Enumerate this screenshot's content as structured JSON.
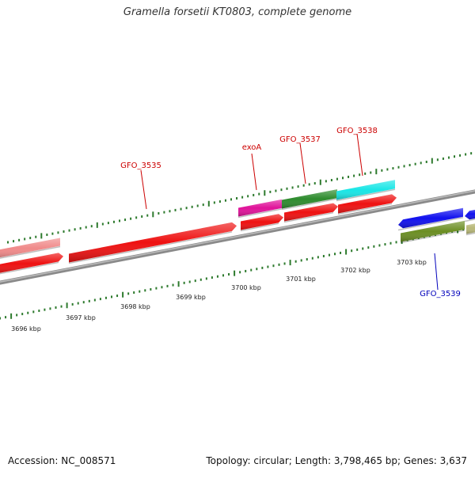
{
  "title": "Gramella forsetii KT0803, complete genome",
  "footer": {
    "accession": "Accession: NC_008571",
    "stats": "Topology: circular; Length: 3,798,465 bp; Genes: 3,637"
  },
  "colors": {
    "backbone": "#8a8a8a",
    "tick": "#2d7a2d",
    "label_forward": "#cc0000",
    "label_reverse": "#0000bb",
    "ruler_text": "#222222"
  },
  "ruler": {
    "labels": [
      "3696 kbp",
      "3697 kbp",
      "3698 kbp",
      "3699 kbp",
      "3700 kbp",
      "3701 kbp",
      "3702 kbp",
      "3703 kbp"
    ]
  },
  "features": [
    {
      "id": "pink-prev",
      "color": "#f08a8a",
      "label": ""
    },
    {
      "id": "red-prev",
      "color": "#ee1111",
      "label": ""
    },
    {
      "id": "GFO_3535",
      "color": "#ee1111",
      "label": "GFO_3535"
    },
    {
      "id": "exoA-outer",
      "color": "#e0139a",
      "label": "exoA"
    },
    {
      "id": "exoA-inner",
      "color": "#ee1111",
      "label": ""
    },
    {
      "id": "GFO_3537-outer",
      "color": "#2e8b2e",
      "label": "GFO_3537"
    },
    {
      "id": "GFO_3537-inner",
      "color": "#ee1111",
      "label": ""
    },
    {
      "id": "GFO_3538-outer",
      "color": "#19e6e6",
      "label": "GFO_3538"
    },
    {
      "id": "GFO_3538-inner",
      "color": "#ee1111",
      "label": ""
    },
    {
      "id": "GFO_3539-blue",
      "color": "#1111ee",
      "label": "GFO_3539"
    },
    {
      "id": "GFO_3539-olive",
      "color": "#6b8e23",
      "label": ""
    },
    {
      "id": "next-blue",
      "color": "#1111ee",
      "label": ""
    },
    {
      "id": "next-khaki",
      "color": "#b8b878",
      "label": ""
    }
  ]
}
